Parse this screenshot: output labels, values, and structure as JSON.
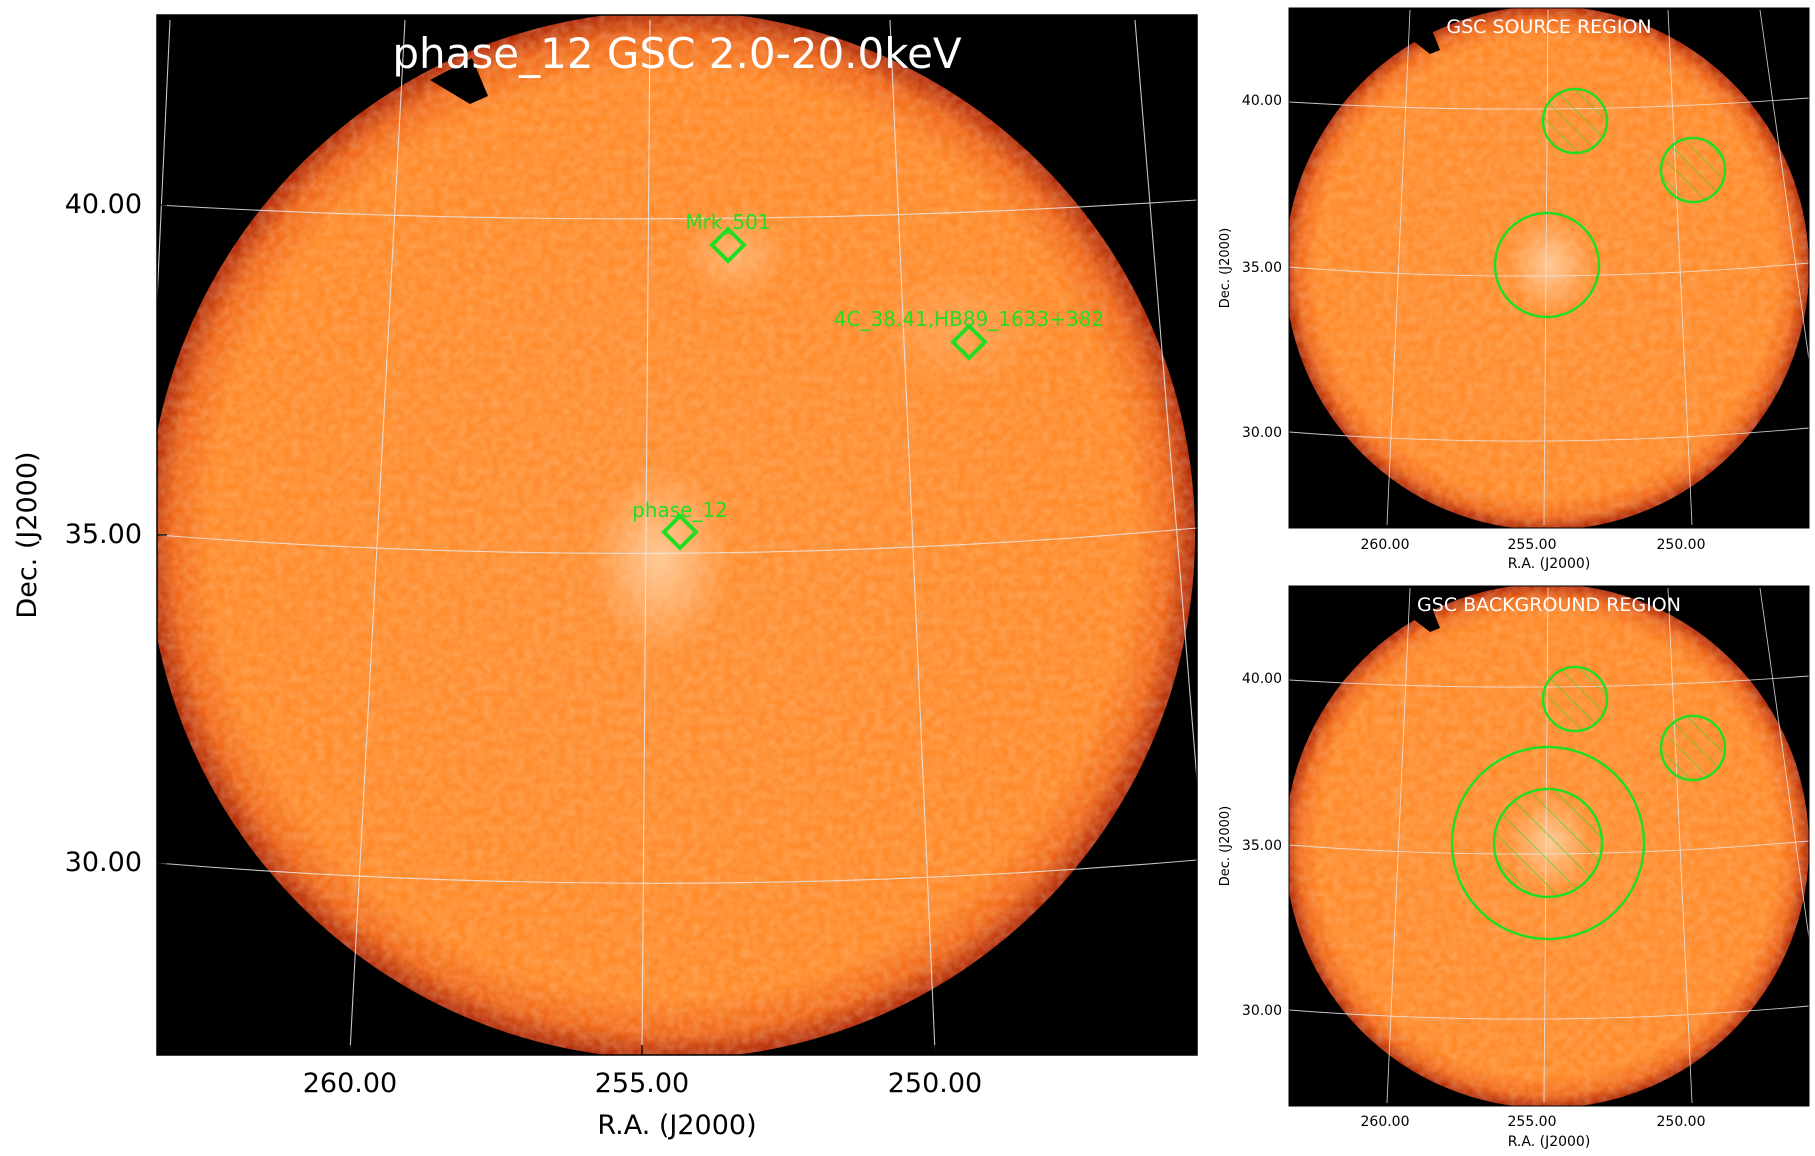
{
  "main_panel": {
    "title": "phase_12 GSC 2.0-20.0keV",
    "xlabel": "R.A. (J2000)",
    "ylabel": "Dec. (J2000)",
    "x_ticks": [
      {
        "value": 260,
        "label": "260.00"
      },
      {
        "value": 255,
        "label": "255.00"
      },
      {
        "value": 250,
        "label": "250.00"
      }
    ],
    "y_ticks": [
      {
        "value": 40,
        "label": "40.00"
      },
      {
        "value": 35,
        "label": "35.00"
      },
      {
        "value": 30,
        "label": "30.00"
      }
    ],
    "sources": [
      {
        "label": "Mrk_501"
      },
      {
        "label": "4C_38.41,HB89_1633+382"
      },
      {
        "label": "phase_12"
      }
    ]
  },
  "source_panel": {
    "title": "GSC SOURCE REGION",
    "xlabel": "R.A. (J2000)",
    "ylabel": "Dec. (J2000)",
    "x_tick_labels": [
      "260.00",
      "255.00",
      "250.00"
    ],
    "y_tick_labels": [
      "40.00",
      "35.00",
      "30.00"
    ]
  },
  "background_panel": {
    "title": "GSC BACKGROUND REGION",
    "xlabel": "R.A. (J2000)",
    "ylabel": "Dec. (J2000)",
    "x_tick_labels": [
      "260.00",
      "255.00",
      "250.00"
    ],
    "y_tick_labels": [
      "40.00",
      "35.00",
      "30.00"
    ]
  },
  "colors": {
    "field": "#ff8c2a",
    "field_edge": "#c93d10",
    "sky_background": "#000000",
    "region_marker": "#22dd22",
    "grid": "#dddddd",
    "title_text": "#ffffff"
  }
}
